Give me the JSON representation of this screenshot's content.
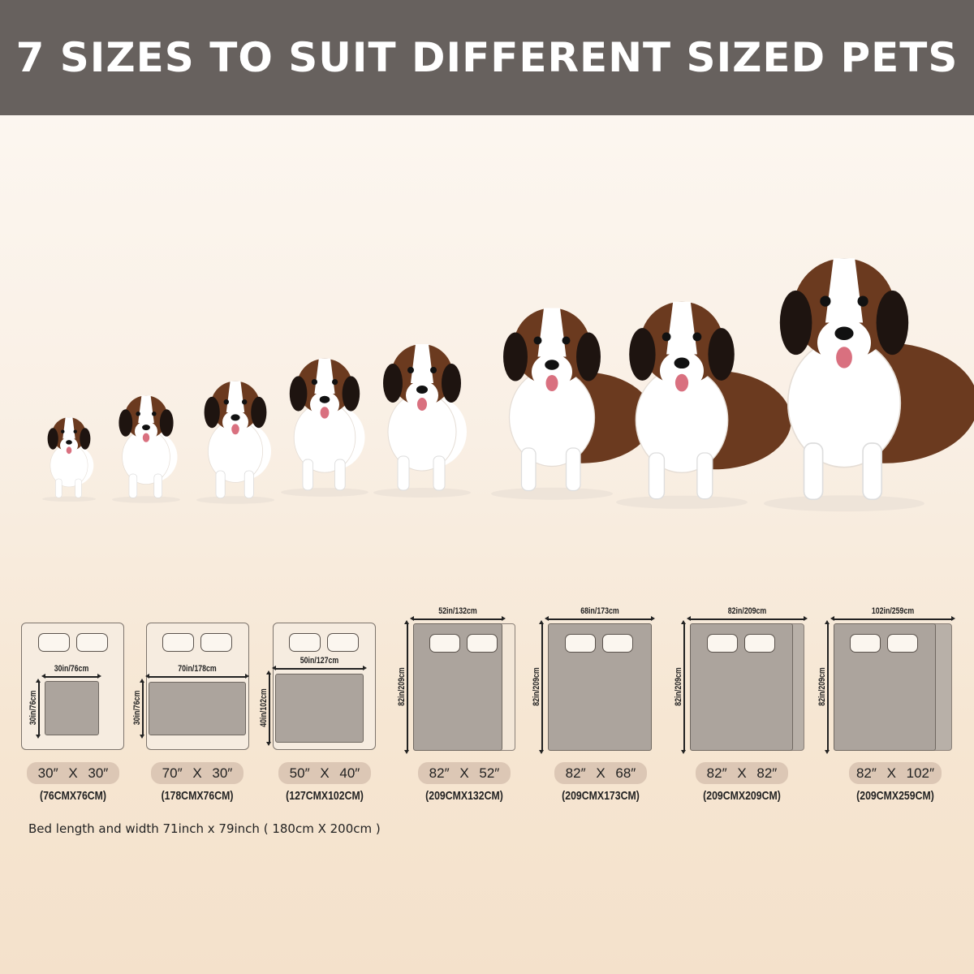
{
  "header": {
    "title": "7 SIZES TO SUIT DIFFERENT SIZED PETS"
  },
  "colors": {
    "header_bg": "#67615e",
    "mat": "#aca49d",
    "pill": "#dcc7b5",
    "dog_brown": "#6b3a1f"
  },
  "image": {
    "subject": "St. Bernard dogs in increasing sizes",
    "dog_count": 8
  },
  "sizes": [
    {
      "width_label": "30in/76cm",
      "height_label": "30in/76cm",
      "inches": "30″ X 30″",
      "cm": "(76CMX76CM)"
    },
    {
      "width_label": "70in/178cm",
      "height_label": "30in/76cm",
      "inches": "70″ X 30″",
      "cm": "(178CMX76CM)"
    },
    {
      "width_label": "50in/127cm",
      "height_label": "40in/102cm",
      "inches": "50″ X 40″",
      "cm": "(127CMX102CM)"
    },
    {
      "width_label": "52in/132cm",
      "height_label": "82in/209cm",
      "inches": "82″ X 52″",
      "cm": "(209CMX132CM)"
    },
    {
      "width_label": "68in/173cm",
      "height_label": "82in/209cm",
      "inches": "82″ X 68″",
      "cm": "(209CMX173CM)"
    },
    {
      "width_label": "82in/209cm",
      "height_label": "82in/209cm",
      "inches": "82″ X 82″",
      "cm": "(209CMX209CM)"
    },
    {
      "width_label": "102in/259cm",
      "height_label": "82in/209cm",
      "inches": "82″ X 102″",
      "cm": "(209CMX259CM)"
    }
  ],
  "note": "Bed length and width 71inch x 79inch ( 180cm X 200cm )"
}
